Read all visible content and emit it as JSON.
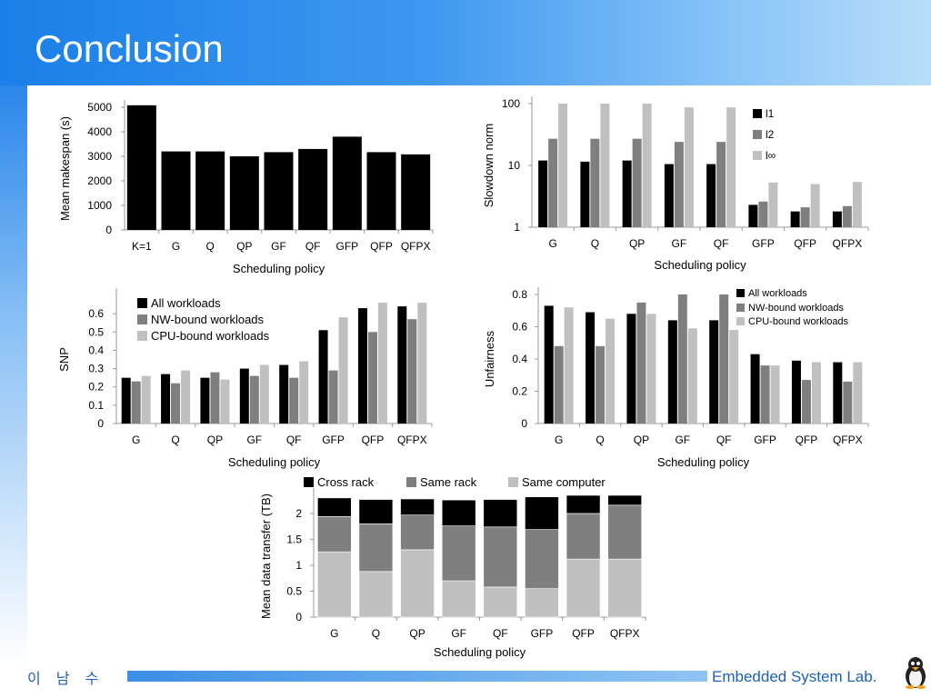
{
  "slide": {
    "title": "Conclusion"
  },
  "footer": {
    "author": "이 남 수",
    "lab": "Embedded System Lab."
  },
  "colors": {
    "black": "#000000",
    "dark_gray": "#7f7f7f",
    "light_gray": "#c0c0c0",
    "header_blue": "#1a7fe8",
    "footer_text": "#1f5fb4"
  },
  "icons": {
    "footer_logo": "penguin-icon"
  },
  "chart_data": [
    {
      "type": "bar",
      "xlabel": "Scheduling policy",
      "ylabel": "Mean makespan (s)",
      "ylim": [
        0,
        5000
      ],
      "yticks": [
        "0",
        "1000",
        "2000",
        "3000",
        "4000",
        "5000"
      ],
      "categories": [
        "K=1",
        "G",
        "Q",
        "QP",
        "GF",
        "QF",
        "GFP",
        "QFP",
        "QFPX"
      ],
      "series": [
        {
          "values": [
            5080,
            3200,
            3200,
            3000,
            3170,
            3300,
            3800,
            3170,
            3080
          ]
        }
      ]
    },
    {
      "type": "bar",
      "log_scale": true,
      "xlabel": "Scheduling policy",
      "ylabel": "Slowdown norm",
      "ylim": [
        1,
        100
      ],
      "yticks": [
        "1",
        "10",
        "100"
      ],
      "legend_position": "top-right",
      "categories": [
        "G",
        "Q",
        "QP",
        "GF",
        "QF",
        "GFP",
        "QFP",
        "QFPX"
      ],
      "series": [
        {
          "name": "l1",
          "values": [
            12,
            11.5,
            12,
            10.5,
            10.5,
            2.3,
            1.8,
            1.8
          ]
        },
        {
          "name": "l2",
          "values": [
            27,
            27,
            27,
            24,
            24,
            2.6,
            2.1,
            2.2
          ]
        },
        {
          "name": "l∞",
          "values": [
            100,
            100,
            100,
            87,
            87,
            5.3,
            5,
            5.4
          ]
        }
      ]
    },
    {
      "type": "bar",
      "xlabel": "Scheduling policy",
      "ylabel": "SNP",
      "ylim": [
        0,
        0.7
      ],
      "yticks": [
        "0",
        "0.1",
        "0.2",
        "0.3",
        "0.4",
        "0.5",
        "0.6"
      ],
      "legend_position": "top-left",
      "categories": [
        "G",
        "Q",
        "QP",
        "GF",
        "QF",
        "GFP",
        "QFP",
        "QFPX"
      ],
      "series": [
        {
          "name": "All workloads",
          "values": [
            0.25,
            0.27,
            0.25,
            0.3,
            0.32,
            0.51,
            0.63,
            0.64
          ]
        },
        {
          "name": "NW-bound workloads",
          "values": [
            0.23,
            0.22,
            0.28,
            0.26,
            0.25,
            0.29,
            0.5,
            0.57
          ]
        },
        {
          "name": "CPU-bound workloads",
          "values": [
            0.26,
            0.29,
            0.24,
            0.32,
            0.34,
            0.58,
            0.66,
            0.66
          ]
        }
      ]
    },
    {
      "type": "bar",
      "xlabel": "Scheduling policy",
      "ylabel": "Unfairness",
      "ylim": [
        0,
        0.8
      ],
      "yticks": [
        "0",
        "0.2",
        "0.4",
        "0.6",
        "0.8"
      ],
      "legend_position": "top-right",
      "categories": [
        "G",
        "Q",
        "QP",
        "GF",
        "QF",
        "GFP",
        "QFP",
        "QFPX"
      ],
      "series": [
        {
          "name": "All workloads",
          "values": [
            0.73,
            0.69,
            0.68,
            0.64,
            0.64,
            0.43,
            0.39,
            0.38
          ]
        },
        {
          "name": "NW-bound workloads",
          "values": [
            0.48,
            0.48,
            0.75,
            0.8,
            0.8,
            0.36,
            0.27,
            0.26
          ]
        },
        {
          "name": "CPU-bound workloads",
          "values": [
            0.72,
            0.65,
            0.68,
            0.59,
            0.58,
            0.36,
            0.38,
            0.38
          ]
        }
      ]
    },
    {
      "type": "bar",
      "stacked": true,
      "xlabel": "Scheduling policy",
      "ylabel": "Mean data transfer (TB)",
      "ylim": [
        0,
        2.35
      ],
      "yticks": [
        "0",
        "0.5",
        "1",
        "1.5",
        "2"
      ],
      "legend_position": "top",
      "categories": [
        "G",
        "Q",
        "QP",
        "GF",
        "QF",
        "GFP",
        "QFP",
        "QFPX"
      ],
      "series": [
        {
          "name": "Same computer",
          "values": [
            1.26,
            0.88,
            1.3,
            0.7,
            0.58,
            0.55,
            1.12,
            1.12
          ]
        },
        {
          "name": "Same rack",
          "values": [
            0.68,
            0.92,
            0.67,
            1.06,
            1.16,
            1.14,
            0.88,
            1.04
          ]
        },
        {
          "name": "Cross rack",
          "values": [
            0.36,
            0.47,
            0.31,
            0.5,
            0.53,
            0.63,
            0.35,
            0.19
          ]
        }
      ]
    }
  ]
}
